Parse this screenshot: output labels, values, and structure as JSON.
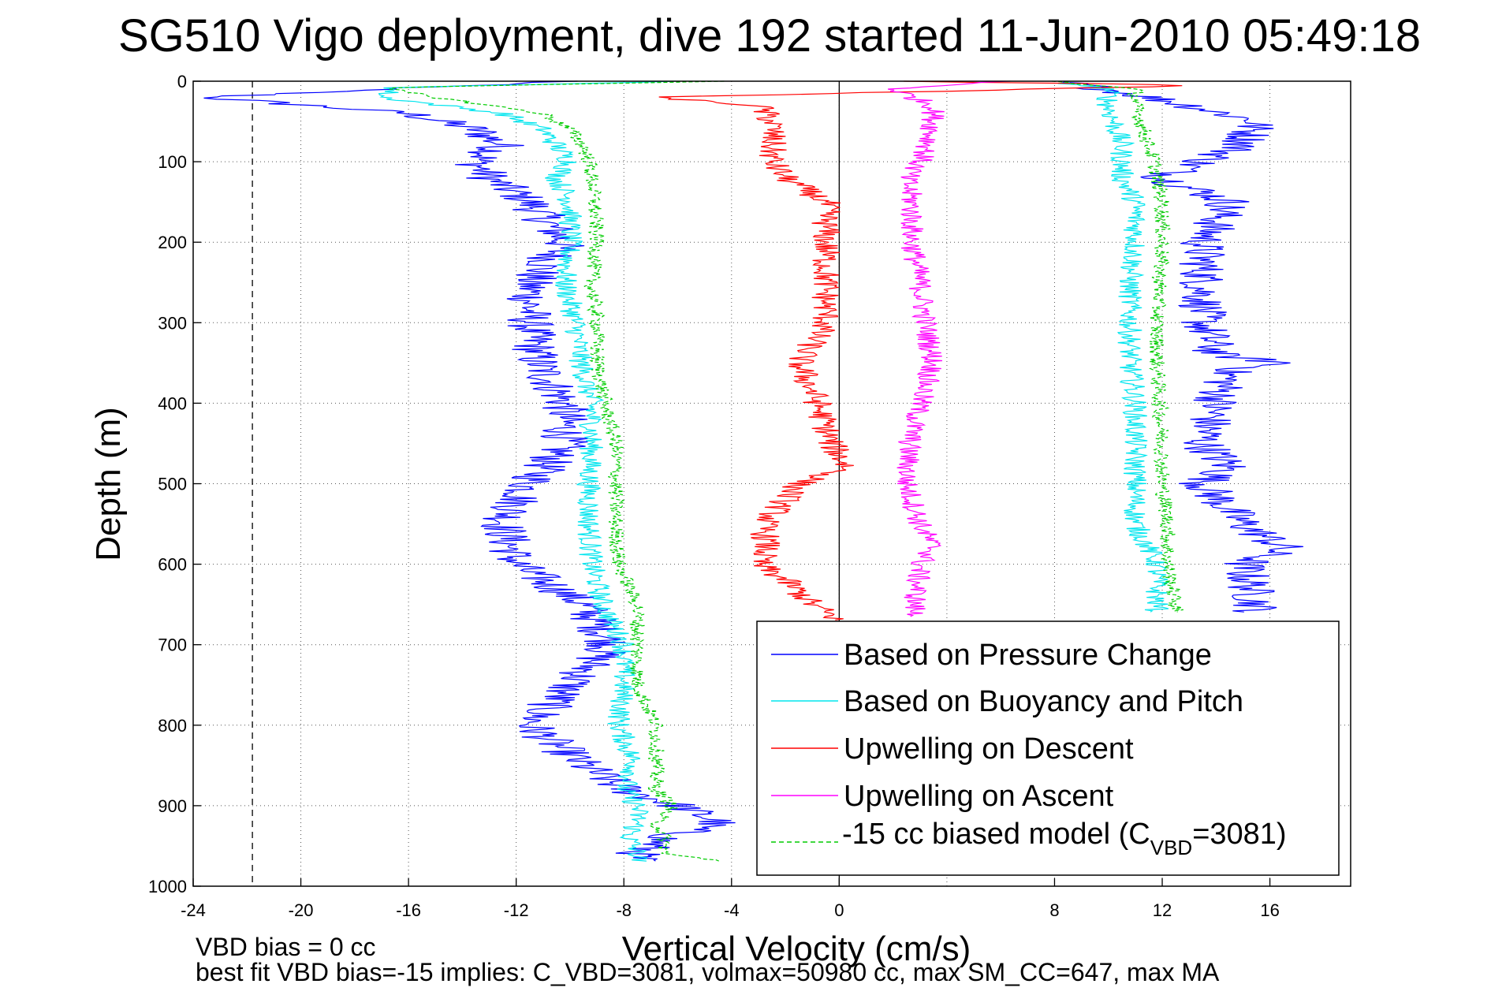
{
  "chart_data": {
    "type": "line",
    "title": "SG510 Vigo deployment, dive 192 started 11-Jun-2010 05:49:18",
    "xlabel": "Vertical Velocity (cm/s)",
    "ylabel": "Depth (m)",
    "xlim": [
      -24,
      19
    ],
    "ylim": [
      0,
      1000
    ],
    "y_reversed": true,
    "grid": true,
    "grid_style": "dotted",
    "xticks": [
      -24,
      -20,
      -16,
      -12,
      -8,
      -4,
      0,
      8,
      12,
      16
    ],
    "xtick_labels": [
      "-24",
      "-20",
      "-16",
      "-12",
      "-8",
      "-4",
      "0",
      "8",
      "12",
      "16"
    ],
    "gridlines_x": [
      -24,
      -20,
      -16,
      -12,
      -8,
      -4,
      0,
      4,
      8,
      12,
      16
    ],
    "yticks": [
      0,
      100,
      200,
      300,
      400,
      500,
      600,
      700,
      800,
      900,
      1000
    ],
    "ytick_labels": [
      "0",
      "100",
      "200",
      "300",
      "400",
      "500",
      "600",
      "700",
      "800",
      "900",
      "1000"
    ],
    "reference_lines": [
      {
        "x": -21.8,
        "style": "dashed",
        "color": "#000000"
      },
      {
        "x": 0,
        "style": "solid",
        "color": "#000000"
      }
    ],
    "legend_position": "lower-right",
    "legend_prefix": "",
    "legend_main": "-15 cc biased model (C",
    "legend_sub": "VBD",
    "legend_suffix": "=3081)",
    "series": [
      {
        "name": "Based on Pressure Change",
        "color": "#0000ff",
        "branch": "descent",
        "noise": 0.9,
        "depth": [
          0,
          8,
          20,
          40,
          60,
          80,
          100,
          120,
          150,
          200,
          250,
          300,
          350,
          400,
          450,
          500,
          550,
          600,
          650,
          700,
          750,
          800,
          850,
          880,
          900,
          920,
          940,
          960,
          970
        ],
        "values": [
          -10,
          -16,
          -23.5,
          -16,
          -13.5,
          -12.5,
          -13.5,
          -13,
          -11.5,
          -10.2,
          -11.5,
          -11.5,
          -11.2,
          -10.2,
          -10.2,
          -11.5,
          -12.5,
          -12,
          -9.5,
          -8.5,
          -10,
          -11.5,
          -9.5,
          -8,
          -6,
          -4.5,
          -6.5,
          -7.5,
          -7.5
        ]
      },
      {
        "name": "Based on Pressure Change",
        "color": "#0000ff",
        "branch": "ascent",
        "noise": 0.9,
        "depth": [
          0,
          10,
          30,
          50,
          80,
          100,
          120,
          150,
          200,
          250,
          300,
          340,
          350,
          360,
          400,
          450,
          480,
          500,
          550,
          580,
          600,
          650,
          660
        ],
        "values": [
          8,
          10,
          13,
          15.5,
          15,
          13.5,
          12,
          14.5,
          13.5,
          13.5,
          13.5,
          14,
          16.5,
          14.5,
          14,
          13.5,
          14.5,
          13.5,
          15,
          16.5,
          15,
          15.5,
          15.5
        ]
      },
      {
        "name": "Based on Buoyancy and Pitch",
        "color": "#00e5ee",
        "branch": "descent",
        "noise": 0.45,
        "depth": [
          0,
          8,
          20,
          40,
          60,
          80,
          100,
          120,
          150,
          200,
          250,
          300,
          350,
          400,
          450,
          500,
          550,
          600,
          650,
          700,
          750,
          800,
          850,
          880,
          900,
          920,
          940,
          960,
          970
        ],
        "values": [
          -6,
          -16.5,
          -17,
          -12.5,
          -11,
          -10.5,
          -10,
          -10.5,
          -10,
          -10,
          -10.2,
          -9.8,
          -9.6,
          -9.2,
          -9.2,
          -9.3,
          -9.3,
          -9.2,
          -8.8,
          -8,
          -8,
          -8.2,
          -7.6,
          -8,
          -7.5,
          -7.5,
          -7.8,
          -7.5,
          -7.5
        ]
      },
      {
        "name": "Based on Buoyancy and Pitch",
        "color": "#00e5ee",
        "branch": "ascent",
        "noise": 0.45,
        "depth": [
          0,
          10,
          30,
          50,
          80,
          100,
          120,
          150,
          200,
          250,
          300,
          350,
          400,
          450,
          500,
          550,
          600,
          650,
          660
        ],
        "values": [
          8,
          10,
          10,
          10.2,
          10.5,
          10.5,
          10.5,
          11,
          11,
          10.8,
          10.8,
          10.8,
          11,
          11,
          11,
          11,
          11.8,
          11.8,
          11.8
        ]
      },
      {
        "name": "Upwelling on Descent",
        "color": "#ff0000",
        "branch": "descent",
        "noise": 0.55,
        "depth": [
          0,
          5,
          20,
          30,
          50,
          80,
          100,
          120,
          150,
          200,
          250,
          300,
          350,
          400,
          450,
          480,
          500,
          520,
          550,
          580,
          600,
          620,
          650,
          670
        ],
        "values": [
          2,
          14,
          -7,
          -3,
          -2.5,
          -2.5,
          -2.5,
          -2,
          -0.5,
          -0.5,
          -0.5,
          -0.5,
          -1.5,
          -0.8,
          -0.3,
          0.3,
          -1.5,
          -2,
          -2.8,
          -2.7,
          -3,
          -2,
          -1,
          0
        ]
      },
      {
        "name": "Upwelling on Ascent",
        "color": "#ff00ff",
        "branch": "ascent",
        "noise": 0.45,
        "depth": [
          0,
          10,
          30,
          50,
          80,
          100,
          120,
          150,
          200,
          250,
          300,
          350,
          400,
          450,
          500,
          550,
          580,
          600,
          650,
          665
        ],
        "values": [
          6,
          2,
          3.5,
          3.5,
          3.3,
          3,
          2.5,
          2.7,
          2.7,
          3,
          3.2,
          3.5,
          3,
          2.6,
          2.5,
          3,
          3.5,
          3,
          2.8,
          2.8
        ]
      },
      {
        "name": "-15 cc biased model (C_VBD=3081)",
        "color": "#00cc00",
        "branch": "descent",
        "noise": 0.3,
        "depth": [
          0,
          8,
          20,
          40,
          60,
          80,
          100,
          120,
          150,
          200,
          250,
          300,
          350,
          400,
          450,
          500,
          550,
          600,
          650,
          700,
          750,
          800,
          850,
          880,
          900,
          920,
          940,
          960,
          970
        ],
        "values": [
          -4,
          -17,
          -15,
          -11,
          -10,
          -9.5,
          -9.3,
          -9.2,
          -9.1,
          -9,
          -9.2,
          -9,
          -9,
          -8.7,
          -8.3,
          -8.3,
          -8.3,
          -8.2,
          -7.5,
          -7.5,
          -7.5,
          -6.8,
          -6.8,
          -6.8,
          -6.2,
          -6.8,
          -6.5,
          -6.5,
          -4
        ]
      },
      {
        "name": "-15 cc biased model (C_VBD=3081)",
        "color": "#00cc00",
        "branch": "ascent",
        "noise": 0.3,
        "depth": [
          0,
          10,
          30,
          50,
          80,
          100,
          120,
          150,
          200,
          250,
          300,
          350,
          400,
          450,
          500,
          550,
          600,
          650,
          660
        ],
        "values": [
          8,
          11,
          11,
          11.2,
          11.5,
          11.7,
          11.8,
          12,
          12,
          11.9,
          11.8,
          11.8,
          11.9,
          12,
          12,
          12.2,
          12.2,
          12.5,
          12.5
        ]
      }
    ],
    "legend": [
      {
        "label": "Based on Pressure Change",
        "color": "#0000ff",
        "style": "solid"
      },
      {
        "label": "Based on Buoyancy and Pitch",
        "color": "#00e5ee",
        "style": "solid"
      },
      {
        "label": "Upwelling on Descent",
        "color": "#ff0000",
        "style": "solid"
      },
      {
        "label": "Upwelling on Ascent",
        "color": "#ff00ff",
        "style": "solid"
      },
      {
        "label": "-15 cc biased model (C_VBD=3081)",
        "color": "#00cc00",
        "style": "dashed"
      }
    ],
    "annotations": [
      "VBD bias = 0 cc",
      "best fit VBD bias=-15 implies: C_VBD=3081, volmax=50980 cc, max SM_CC=647, max MA"
    ]
  }
}
